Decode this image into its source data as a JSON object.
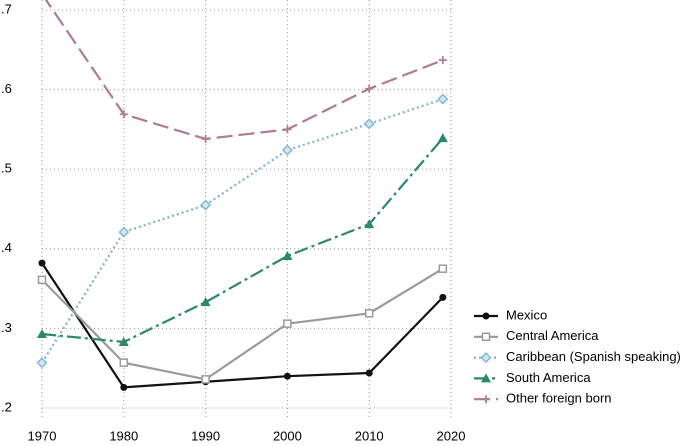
{
  "chart_data": {
    "type": "line",
    "x": [
      1970,
      1980,
      1990,
      2000,
      2010,
      2019
    ],
    "series": [
      {
        "name": "Mexico",
        "color": "#111111",
        "marker": "circle",
        "dash": "solid",
        "values": [
          0.382,
          0.226,
          0.233,
          0.24,
          0.244,
          0.339
        ]
      },
      {
        "name": "Central America",
        "color": "#9a9a9a",
        "marker": "square",
        "dash": "solid",
        "values": [
          0.361,
          0.257,
          0.236,
          0.306,
          0.319,
          0.375
        ]
      },
      {
        "name": "Caribbean (Spanish speaking)",
        "color": "#7ab3d3",
        "marker": "diamond",
        "dash": "dot",
        "values": [
          0.257,
          0.421,
          0.455,
          0.524,
          0.557,
          0.588
        ]
      },
      {
        "name": "South America",
        "color": "#2a8a68",
        "marker": "triangle",
        "dash": "dashdot",
        "values": [
          0.293,
          0.283,
          0.333,
          0.391,
          0.431,
          0.539
        ]
      },
      {
        "name": "Other foreign born",
        "color": "#b07a96",
        "marker": "plus",
        "dash": "longdash",
        "values": [
          0.72,
          0.569,
          0.538,
          0.55,
          0.601,
          0.637
        ]
      }
    ],
    "xlim": [
      1970,
      2020
    ],
    "xticks": [
      1970,
      1980,
      1990,
      2000,
      2010,
      2020
    ],
    "ylim": [
      0.1875,
      0.7125
    ],
    "yticks": [
      {
        "value": 0.2,
        "label": ".2"
      },
      {
        "value": 0.3,
        "label": ".3"
      },
      {
        "value": 0.4,
        "label": ".4"
      },
      {
        "value": 0.5,
        "label": ".5"
      },
      {
        "value": 0.6,
        "label": ".6"
      },
      {
        "value": 0.7,
        "label": ".7"
      }
    ],
    "grid": true
  }
}
